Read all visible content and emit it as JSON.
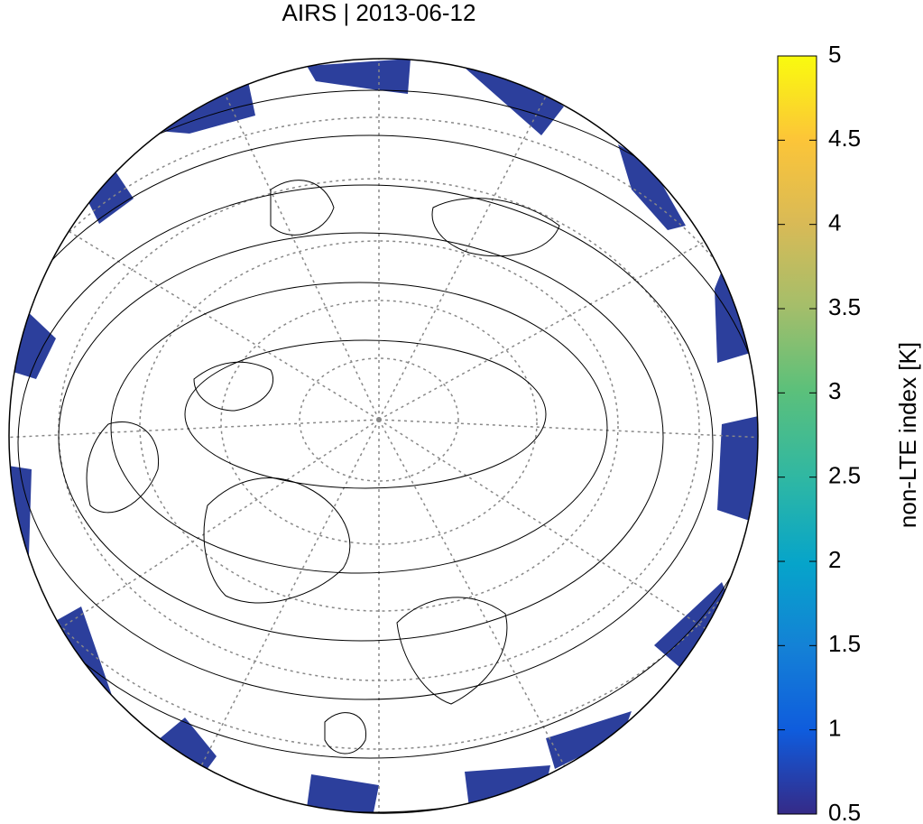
{
  "title": "AIRS | 2013-06-12",
  "colorbar": {
    "label": "non-LTE index [K]",
    "lim": [
      0.5,
      5
    ],
    "ticks": [
      0.5,
      1,
      1.5,
      2,
      2.5,
      3,
      3.5,
      4,
      4.5,
      5
    ]
  }
}
